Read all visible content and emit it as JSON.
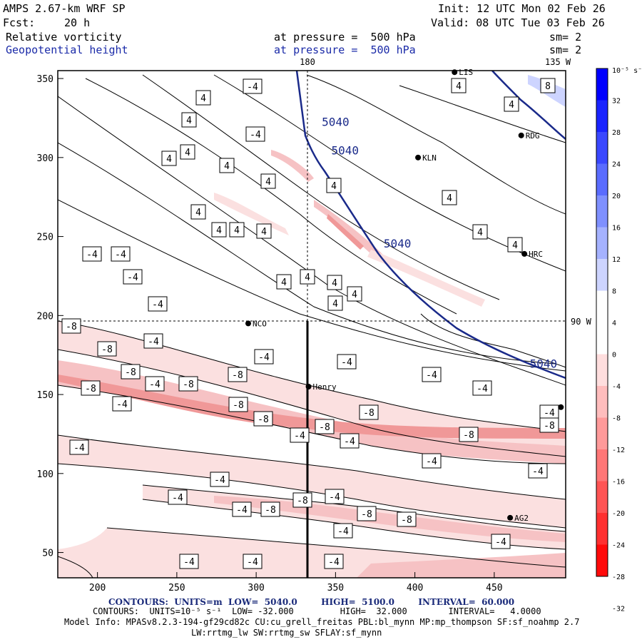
{
  "header": {
    "model": "AMPS 2.67-km WRF SP",
    "init": "Init: 12 UTC Mon 02 Feb 26",
    "fcst_label": "Fcst:",
    "fcst_value": "20 h",
    "valid": "Valid: 08 UTC Tue 03 Feb 26",
    "field1_name": "Relative vorticity",
    "field1_level": "at pressure =  500 hPa",
    "field1_sm": "sm= 2",
    "field2_name": "Geopotential height",
    "field2_level": "at pressure =  500 hPa",
    "field2_sm": "sm= 2"
  },
  "chart_data": {
    "type": "contour_map",
    "x_ticks": [
      "200",
      "250",
      "300",
      "350",
      "400",
      "450"
    ],
    "y_ticks": [
      "50",
      "100",
      "150",
      "200",
      "250",
      "300",
      "350"
    ],
    "xlim": [
      175,
      495
    ],
    "ylim": [
      34,
      355
    ],
    "grid_line_labels": {
      "lon_top": "180",
      "lon_top_right": "135 W",
      "lat_right": "90 W"
    },
    "grid_line_positions": {
      "lon_line_x": 334,
      "lat_line_y": 195
    },
    "stations": [
      {
        "name": "NCO",
        "x": 295,
        "y": 195
      },
      {
        "name": "Henry",
        "x": 333,
        "y": 155
      },
      {
        "name": "KLN",
        "x": 402,
        "y": 300
      },
      {
        "name": "RDG",
        "x": 467,
        "y": 314
      },
      {
        "name": "HRC",
        "x": 469,
        "y": 239
      },
      {
        "name": "AG2",
        "x": 460,
        "y": 72
      },
      {
        "name": "LIS",
        "x": 425,
        "y": 354
      },
      {
        "name": "",
        "x": 492,
        "y": 142
      }
    ],
    "height_contour_labels": [
      {
        "text": "5040",
        "x": 350,
        "y": 320
      },
      {
        "text": "5040",
        "x": 356,
        "y": 302
      },
      {
        "text": "5040",
        "x": 389,
        "y": 243
      },
      {
        "text": "5040",
        "x": 481,
        "y": 167
      }
    ],
    "vorticity_labels": [
      "4",
      "4",
      "4",
      "4",
      "4",
      "4",
      "4",
      "4",
      "4",
      "4",
      "4",
      "4",
      "4",
      "4",
      "4",
      "4",
      "4",
      "4",
      "4",
      "4",
      "4",
      "8",
      "-4",
      "-4",
      "-4",
      "-4",
      "-4",
      "-4",
      "-4",
      "-4",
      "-4",
      "-4",
      "-4",
      "-4",
      "-4",
      "-4",
      "-4",
      "-4",
      "-4",
      "-4",
      "-4",
      "-4",
      "-4",
      "-4",
      "-4",
      "-4",
      "-4",
      "-4",
      "-4",
      "-4",
      "-8",
      "-8",
      "-8",
      "-8",
      "-8",
      "-8",
      "-8",
      "-8",
      "-8",
      "-8",
      "-8",
      "-8",
      "-8",
      "-8",
      "-8",
      "-8"
    ],
    "colorbar": {
      "unit": "10⁻⁵ s⁻¹",
      "ticks": [
        "32",
        "28",
        "24",
        "20",
        "16",
        "12",
        "8",
        "4",
        "0",
        "-4",
        "-8",
        "-12",
        "-16",
        "-20",
        "-24",
        "-28",
        "-32"
      ],
      "colors": [
        "#0000ff",
        "#1a24ff",
        "#3a48ff",
        "#5a6cff",
        "#7f90ff",
        "#a5b2ff",
        "#cdd4ff",
        "#ffffff",
        "#ffffff",
        "#ffdede",
        "#ffbdbd",
        "#ff9a9a",
        "#ff7777",
        "#ff5454",
        "#ff3030",
        "#ff0a0a"
      ]
    },
    "colors": {
      "vort_pos_weak": "#ffffff",
      "vort_neg_1": "#fbe0e0",
      "vort_neg_2": "#f6c2c4",
      "vort_neg_3": "#f09898",
      "height_contour": "#1a2a8a"
    }
  },
  "footer": {
    "contours1": "CONTOURS:  UNITS=m  LOW=  5040.0        HIGH=  5100.0        INTERVAL=  60.000",
    "contours2": "CONTOURS:  UNITS=10⁻⁵ s⁻¹  LOW= -32.000         HIGH=  32.000        INTERVAL=   4.0000",
    "model_info1": "Model Info: MPASv8.2.3-194-gf29cd82c CU:cu_grell_freitas PBL:bl_mynn MP:mp_thompson SF:sf_noahmp 2.7",
    "model_info2": "LW:rrtmg_lw SW:rrtmg_sw SFLAY:sf_mynn"
  }
}
